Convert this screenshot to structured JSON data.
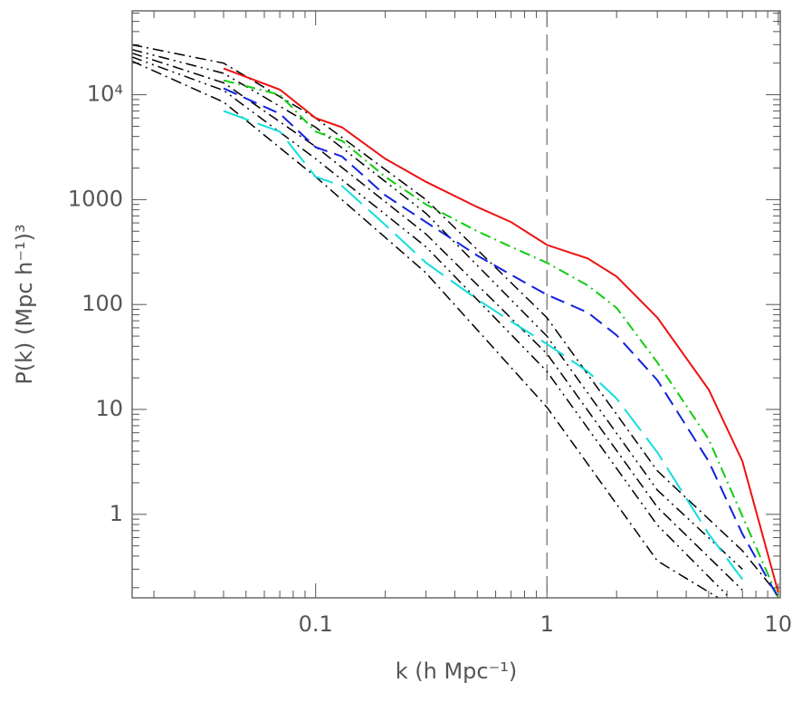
{
  "chart_data": {
    "type": "line",
    "xlabel": "k (h Mpc⁻¹)",
    "ylabel": "P(k) (Mpc h⁻¹)³",
    "xscale": "log",
    "yscale": "log",
    "xlim": [
      0.0161,
      10.2
    ],
    "ylim": [
      0.16,
      63000
    ],
    "xticks": [
      0.1,
      1,
      10
    ],
    "yticks": [
      1,
      10,
      100,
      1000,
      {
        "value": 10000,
        "label": "10⁴"
      }
    ],
    "vline": 1,
    "series": [
      {
        "color": "#000000",
        "style": "dashdot",
        "x": [
          0.016,
          0.04,
          0.1,
          0.3,
          1,
          3,
          7,
          10
        ],
        "values": [
          30000,
          20000,
          6000,
          1000,
          75,
          2.6,
          0.45,
          0.17
        ]
      },
      {
        "color": "#000000",
        "style": "dashdotdot",
        "x": [
          0.016,
          0.04,
          0.1,
          0.3,
          1,
          3,
          7,
          10
        ],
        "values": [
          27000,
          16000,
          4900,
          740,
          50,
          1.7,
          0.3,
          null
        ]
      },
      {
        "color": "#000000",
        "style": "dashdot",
        "x": [
          0.016,
          0.04,
          0.1,
          0.3,
          1,
          3,
          7
        ],
        "values": [
          25000,
          13000,
          3200,
          470,
          34,
          1.17,
          0.19
        ]
      },
      {
        "color": "#000000",
        "style": "dashdotdot",
        "x": [
          0.016,
          0.04,
          0.1,
          0.3,
          1,
          3,
          6
        ],
        "values": [
          23000,
          11000,
          2450,
          355,
          23,
          0.79,
          0.17
        ]
      },
      {
        "color": "#000000",
        "style": "dashdot",
        "x": [
          0.016,
          0.04,
          0.1,
          0.3,
          1,
          3,
          5.5
        ],
        "values": [
          21000,
          8500,
          1650,
          200,
          10.5,
          0.36,
          0.16
        ]
      },
      {
        "color": "#ee1111",
        "style": "solid",
        "x": [
          0.04,
          0.07,
          0.1,
          0.13,
          0.2,
          0.3,
          0.5,
          0.7,
          1,
          1.5,
          2,
          3,
          5,
          7,
          10
        ],
        "values": [
          17800,
          11200,
          6000,
          4900,
          2450,
          1480,
          850,
          610,
          370,
          275,
          185,
          75,
          15.5,
          3.2,
          0.18
        ]
      },
      {
        "color": "#11cc11",
        "style": "dashdot",
        "x": [
          0.04,
          0.07,
          0.1,
          0.13,
          0.2,
          0.3,
          0.5,
          0.7,
          1,
          1.5,
          2,
          3,
          5,
          7,
          10
        ],
        "values": [
          13700,
          10000,
          4450,
          3640,
          1650,
          900,
          500,
          355,
          250,
          152,
          93,
          28,
          5.2,
          0.96,
          0.16
        ]
      },
      {
        "color": "#1122dd",
        "style": "dashed",
        "x": [
          0.04,
          0.07,
          0.1,
          0.13,
          0.2,
          0.3,
          0.5,
          0.7,
          1,
          1.5,
          2,
          3,
          5,
          7,
          10
        ],
        "values": [
          11500,
          6600,
          3160,
          2580,
          1100,
          610,
          293,
          192,
          124,
          84,
          51,
          19,
          3.2,
          0.65,
          0.16
        ]
      },
      {
        "color": "#11dddd",
        "style": "longdash",
        "x": [
          0.04,
          0.07,
          0.1,
          0.13,
          0.2,
          0.3,
          0.5,
          0.7,
          1,
          1.5,
          2,
          3,
          5,
          7
        ],
        "values": [
          7000,
          4450,
          1650,
          1350,
          575,
          250,
          112,
          69,
          42,
          23,
          12.7,
          3.9,
          0.65,
          0.24
        ]
      }
    ]
  }
}
